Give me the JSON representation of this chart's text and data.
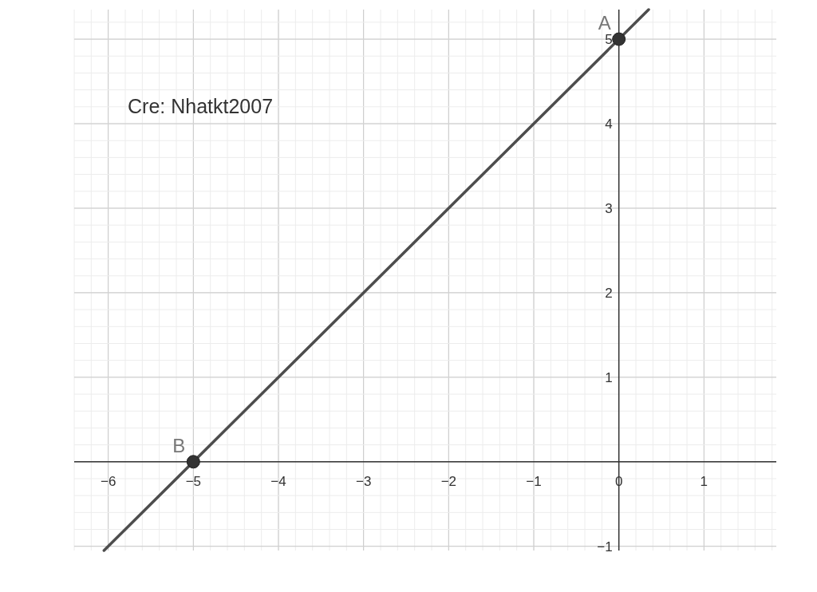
{
  "chart_data": {
    "type": "line",
    "xlim": [
      -6.4,
      1.85
    ],
    "ylim": [
      -1.05,
      5.35
    ],
    "xticks": [
      {
        "value": -6,
        "label": "−6"
      },
      {
        "value": -5,
        "label": "−5"
      },
      {
        "value": -4,
        "label": "−4"
      },
      {
        "value": -3,
        "label": "−3"
      },
      {
        "value": -2,
        "label": "−2"
      },
      {
        "value": -1,
        "label": "−1"
      },
      0,
      1
    ],
    "yticks": [
      {
        "value": -1,
        "label": "−1"
      },
      {
        "value": 0,
        "label": null
      },
      1,
      2,
      3,
      4,
      5
    ],
    "grid": true,
    "series": [
      {
        "color": "#4d4d4d",
        "x": [
          -6.05,
          0.35
        ],
        "values": [
          -1.05,
          5.35
        ]
      },
      {
        "type": "scatter",
        "color": "#333333",
        "x": [
          0,
          -5
        ],
        "values": [
          5,
          0
        ],
        "marker": "circle"
      }
    ],
    "annotations": [
      "Cre: Nhatkt2007",
      {
        "text": "A",
        "x": 0,
        "y": 5
      },
      {
        "text": "B",
        "x": -5,
        "y": 0
      }
    ]
  }
}
